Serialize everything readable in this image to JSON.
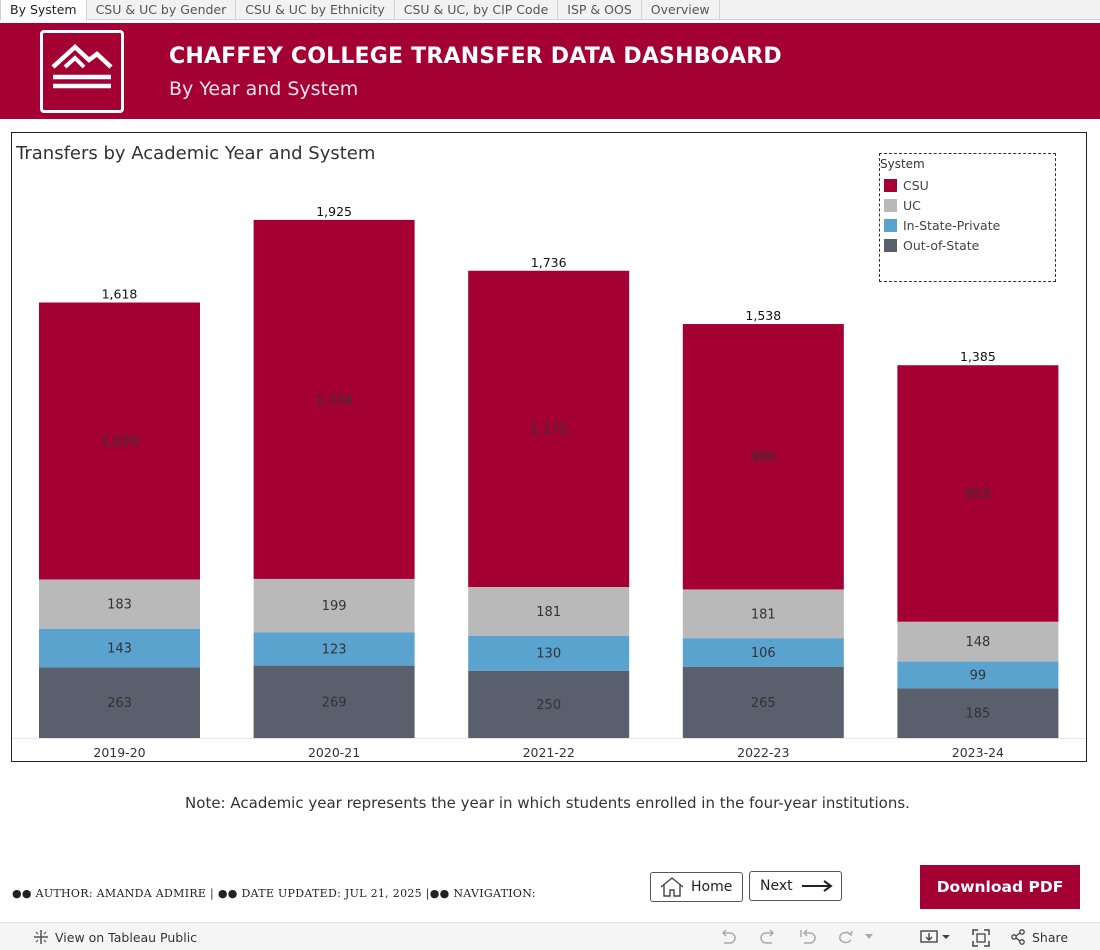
{
  "tabs": [
    "By System",
    "CSU & UC by Gender",
    "CSU & UC by Ethnicity",
    "CSU & UC, by CIP Code",
    "ISP & OOS",
    "Overview"
  ],
  "header": {
    "title": "CHAFFEY COLLEGE TRANSFER DATA DASHBOARD",
    "subtitle": "By Year and System",
    "logo_icon": "mountain-logo-icon"
  },
  "legend": {
    "title": "System",
    "items": [
      {
        "label": "CSU",
        "color": "#a50034"
      },
      {
        "label": "UC",
        "color": "#b9b9b9"
      },
      {
        "label": "In-State-Private",
        "color": "#5ba3cf"
      },
      {
        "label": "Out-of-State",
        "color": "#5a5f6e"
      }
    ]
  },
  "chart_data": {
    "type": "bar",
    "stacked": true,
    "title": "Transfers by Academic Year and System",
    "categories": [
      "2019-20",
      "2020-21",
      "2021-22",
      "2022-23",
      "2023-24"
    ],
    "series": [
      {
        "name": "Out-of-State",
        "values": [
          263,
          269,
          250,
          265,
          185
        ],
        "color": "#5a5f6e"
      },
      {
        "name": "In-State-Private",
        "values": [
          143,
          123,
          130,
          106,
          99
        ],
        "color": "#5ba3cf"
      },
      {
        "name": "UC",
        "values": [
          183,
          199,
          181,
          181,
          148
        ],
        "color": "#b9b9b9"
      },
      {
        "name": "CSU",
        "values": [
          1029,
          1334,
          1175,
          986,
          953
        ],
        "color": "#a50034"
      }
    ],
    "totals": [
      "1,618",
      "1,925",
      "1,736",
      "1,538",
      "1,385"
    ],
    "segment_labels": {
      "Out-of-State": [
        "263",
        "269",
        "250",
        "265",
        "185"
      ],
      "In-State-Private": [
        "143",
        "123",
        "130",
        "106",
        "99"
      ],
      "UC": [
        "183",
        "199",
        "181",
        "181",
        "148"
      ],
      "CSU": [
        "1,029",
        "1,334",
        "1,175",
        "986",
        "953"
      ]
    },
    "ylim": [
      0,
      2000
    ],
    "grid": false,
    "legend_position": "top-right"
  },
  "note": "Note: Academic year represents the year in which students enrolled in the four-year institutions.",
  "credits": "●● AUTHOR: AMANDA ADMIRE | ●● DATE UPDATED: JUL 21, 2025 |●● NAVIGATION:",
  "nav": {
    "home": "Home",
    "next": "Next"
  },
  "download_pdf": "Download PDF",
  "toolbar": {
    "view_on_tableau": "View on Tableau Public",
    "share": "Share",
    "icons": [
      "undo-icon",
      "redo-icon",
      "revert-icon",
      "refresh-icon",
      "pause-icon",
      "download-icon",
      "fullscreen-icon",
      "share-icon"
    ]
  }
}
